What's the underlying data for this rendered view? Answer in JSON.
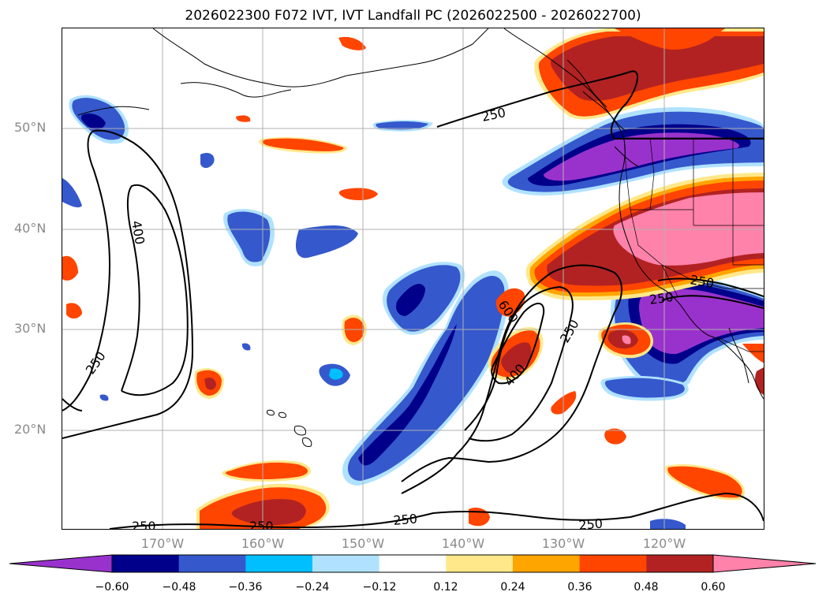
{
  "title": "2026022300 F072 IVT, IVT Landfall PC (2026022500 - 2026022700)",
  "map": {
    "lat_labels": [
      "50°N",
      "40°N",
      "30°N",
      "20°N"
    ],
    "lon_labels": [
      "170°W",
      "160°W",
      "150°W",
      "140°W",
      "130°W",
      "120°W"
    ],
    "contour_labels": [
      "250",
      "400",
      "250",
      "600",
      "400",
      "250",
      "250",
      "250",
      "250",
      "250",
      "250",
      "250"
    ],
    "gridlines": true
  },
  "colorbar": {
    "ticks": [
      "−0.60",
      "−0.48",
      "−0.36",
      "−0.24",
      "−0.12",
      "0.12",
      "0.24",
      "0.36",
      "0.48",
      "0.60"
    ],
    "colors": [
      "#9932cc",
      "#00008b",
      "#3558cd",
      "#00bfff",
      "#b0e2ff",
      "#ffffff",
      "#ffe88a",
      "#ffa500",
      "#ff4500",
      "#b22222",
      "#ff82ab"
    ]
  }
}
